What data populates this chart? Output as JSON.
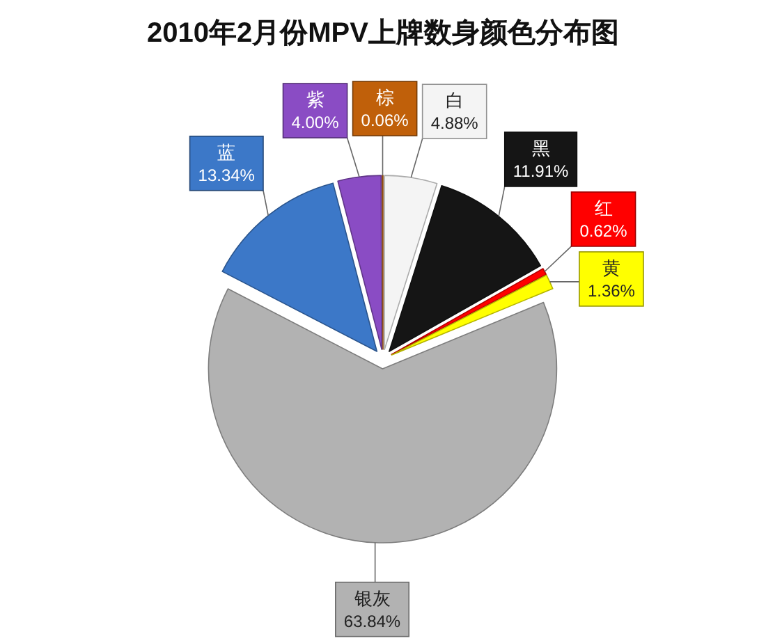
{
  "chart_data": {
    "type": "pie",
    "title": "2010年2月份MPV上牌数身颜色分布图",
    "categories": [
      "白",
      "黑",
      "红",
      "黄",
      "银灰",
      "蓝",
      "紫",
      "棕"
    ],
    "values": [
      4.88,
      11.91,
      0.62,
      1.36,
      63.84,
      13.34,
      4.0,
      0.06
    ],
    "colors": [
      "#f4f4f4",
      "#151515",
      "#ff0000",
      "#ffff00",
      "#b2b2b2",
      "#3c78c8",
      "#8a4cc4",
      "#c0600a"
    ],
    "value_labels": [
      "4.88%",
      "11.91%",
      "0.62%",
      "1.36%",
      "63.84%",
      "13.34%",
      "4.00%",
      "0.06%"
    ]
  }
}
